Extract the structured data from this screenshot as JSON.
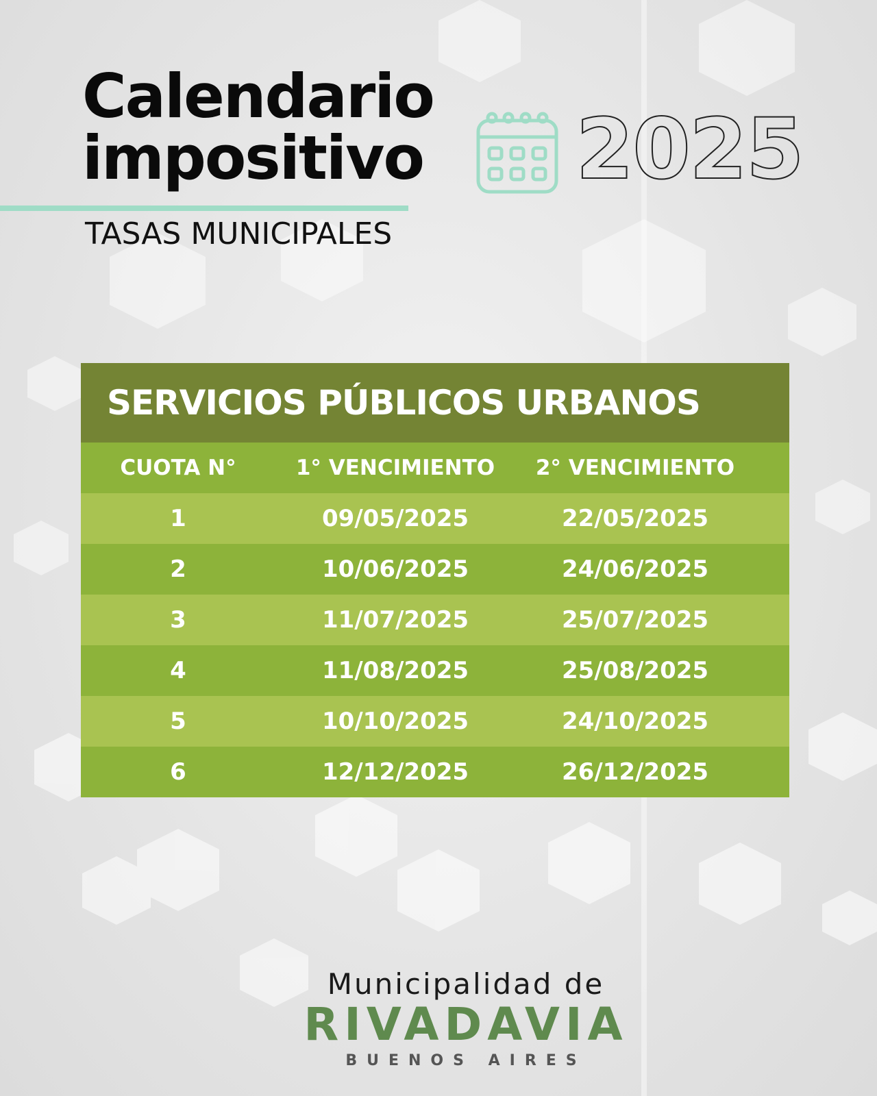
{
  "header": {
    "title_line1": "Calendario",
    "title_line2": "impositivo",
    "subtitle": "TASAS MUNICIPALES",
    "year": "2025",
    "icon": "calendar-icon",
    "accent_color": "#9fdcc6"
  },
  "table": {
    "title": "SERVICIOS PÚBLICOS URBANOS",
    "columns": [
      "CUOTA N°",
      "1° VENCIMIENTO",
      "2° VENCIMIENTO"
    ],
    "rows": [
      [
        "1",
        "09/05/2025",
        "22/05/2025"
      ],
      [
        "2",
        "10/06/2025",
        "24/06/2025"
      ],
      [
        "3",
        "11/07/2025",
        "25/07/2025"
      ],
      [
        "4",
        "11/08/2025",
        "25/08/2025"
      ],
      [
        "5",
        "10/10/2025",
        "24/10/2025"
      ],
      [
        "6",
        "12/12/2025",
        "26/12/2025"
      ]
    ],
    "colors": {
      "title_bg": "#748434",
      "row_dark": "#8db33a",
      "row_light": "#a9c351",
      "text": "#ffffff"
    }
  },
  "footer": {
    "line1": "Municipalidad de",
    "line2": "RIVADAVIA",
    "line3": "BUENOS AIRES",
    "brand_color": "#5f8a4e"
  }
}
